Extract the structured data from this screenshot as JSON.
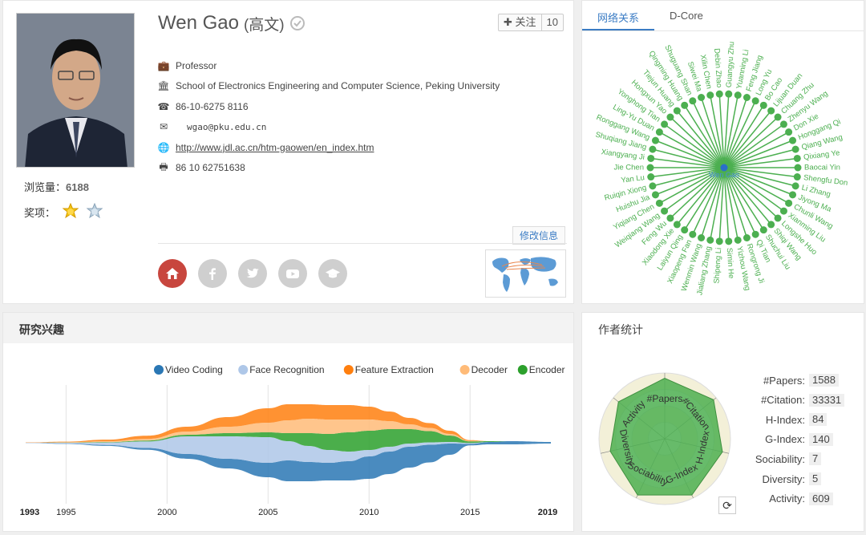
{
  "profile": {
    "name": "Wen Gao",
    "name_cn": "(高文)",
    "follow_label": "✚ 关注",
    "follow_count": "10",
    "views_label": "浏览量：",
    "views_count": "6188",
    "awards_label": "奖项：",
    "position": "Professor",
    "affiliation": "School of Electronics Engineering and Computer Science, Peking University",
    "phone": "86-10-6275 8116",
    "email": "wgao@pku.edu.cn",
    "homepage": "http://www.jdl.ac.cn/htm-gaowen/en_index.htm",
    "fax": "86 10 62751638",
    "edit_label": "修改信息",
    "social": [
      "home-icon",
      "facebook-icon",
      "twitter-icon",
      "youtube-icon",
      "scholar-icon"
    ]
  },
  "network": {
    "tabs": [
      "网络关系",
      "D-Core"
    ],
    "center": "Wen Gao",
    "color": "#4caf50",
    "nodes": [
      "Guangyu Zhu",
      "Yuanning Li",
      "Feng Jiang",
      "Long Yu",
      "Bo Cao",
      "Lijuan Duan",
      "Chuang Zhu",
      "Zhenyu Wang",
      "Don Xie",
      "Honggang Qi",
      "Qiang Wang",
      "Qixiang Ye",
      "Baocai Yin",
      "Shengfu Don",
      "Li Zhang",
      "Jiyong Ma",
      "Chunli Wang",
      "Xianming Liu",
      "Longshe Huo",
      "Shiqi Wang",
      "Shuchui Liu",
      "Qi Tian",
      "Rongrong Ji",
      "Yizhou Wang",
      "Simin He",
      "Shipeng Li",
      "Jialiang Zhang",
      "Wenmin Wang",
      "Xiaopeng Fan",
      "Laiyun Qing",
      "Xiaodong Xie",
      "Feng Wu",
      "Weiqiang Wang",
      "Yiqiang Chen",
      "Huishu Jia",
      "Ruiqin Xiong",
      "Yan Lu",
      "Jie Chen",
      "Xiangyang Ji",
      "Shuqiang Jiang",
      "Ronggang Wang",
      "Ling-Yu Duan",
      "Yonghong Tian",
      "Hongxun Yao",
      "Tiejun Huang",
      "Qingming Huang",
      "Shuguang Shan",
      "Siwei Ma",
      "Xilin Chen",
      "Debin Zhao"
    ]
  },
  "interest": {
    "title": "研究兴趣",
    "chart_data": {
      "type": "area",
      "subtype": "streamgraph",
      "x": [
        1993,
        1995,
        1997,
        1999,
        2001,
        2003,
        2005,
        2006,
        2007,
        2008,
        2009,
        2010,
        2011,
        2012,
        2013,
        2014,
        2015,
        2016,
        2017,
        2019
      ],
      "xticks": [
        "1993",
        "1995",
        "2000",
        "2005",
        "2010",
        "2015",
        "2019"
      ],
      "series": [
        {
          "name": "Video Coding",
          "color": "#2a77b4",
          "values": [
            0.1,
            0.3,
            0.6,
            1.2,
            3,
            6,
            9,
            13,
            12,
            11,
            12,
            14,
            14,
            13,
            11,
            7,
            1,
            1.5,
            2,
            1
          ]
        },
        {
          "name": "Face Recognition",
          "color": "#aec7e8",
          "values": [
            0.2,
            0.4,
            1.5,
            4,
            11,
            14,
            16,
            12,
            10,
            8,
            6,
            4,
            3,
            2,
            1.5,
            1,
            0.5,
            0,
            0,
            0
          ]
        },
        {
          "name": "Feature Extraction",
          "color": "#ff7f0e",
          "values": [
            0.2,
            0.4,
            1,
            2,
            3,
            6,
            9,
            10,
            9,
            9,
            9,
            8,
            6,
            4,
            3,
            2,
            0.5,
            0,
            0,
            0
          ]
        },
        {
          "name": "Decoder",
          "color": "#ffbb78",
          "values": [
            0,
            0.2,
            0.5,
            1,
            2,
            4,
            6,
            8,
            9,
            9,
            8,
            7,
            5,
            3,
            2,
            1,
            0.3,
            0,
            0,
            0
          ]
        },
        {
          "name": "Encoder",
          "color": "#2ca02c",
          "values": [
            0,
            0.1,
            0.3,
            0.6,
            1,
            2,
            3,
            5,
            8,
            10,
            12,
            12,
            11,
            9,
            7,
            4,
            1,
            0.5,
            0,
            0
          ]
        }
      ]
    }
  },
  "stats": {
    "title": "作者统计",
    "rows": [
      {
        "label": "#Papers:",
        "value": "1588"
      },
      {
        "label": "#Citation:",
        "value": "33331"
      },
      {
        "label": "H-Index:",
        "value": "84"
      },
      {
        "label": "G-Index:",
        "value": "140"
      },
      {
        "label": "Sociability:",
        "value": "7"
      },
      {
        "label": "Diversity:",
        "value": "5"
      },
      {
        "label": "Activity:",
        "value": "609"
      }
    ],
    "radar_data": {
      "type": "radar",
      "axes": [
        "#Papers",
        "#Citation",
        "H-Index",
        "G-Index",
        "Sociability",
        "Diversity",
        "Activity"
      ],
      "values": [
        0.92,
        0.95,
        0.9,
        0.95,
        0.95,
        0.85,
        0.9
      ],
      "color": "#4caf50"
    }
  }
}
